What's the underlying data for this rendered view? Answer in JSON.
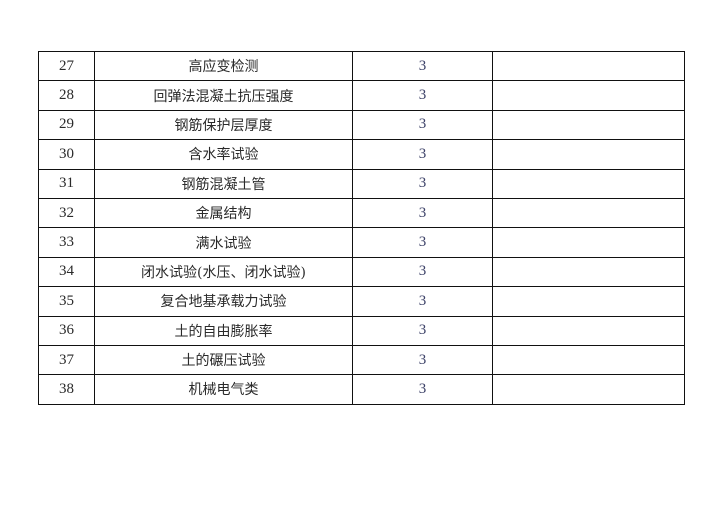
{
  "table": {
    "rows": [
      {
        "no": "27",
        "item": "高应变检测",
        "value": "3",
        "note": ""
      },
      {
        "no": "28",
        "item": "回弹法混凝土抗压强度",
        "value": "3",
        "note": ""
      },
      {
        "no": "29",
        "item": "钢筋保护层厚度",
        "value": "3",
        "note": ""
      },
      {
        "no": "30",
        "item": "含水率试验",
        "value": "3",
        "note": ""
      },
      {
        "no": "31",
        "item": "钢筋混凝土管",
        "value": "3",
        "note": ""
      },
      {
        "no": "32",
        "item": "金属结构",
        "value": "3",
        "note": ""
      },
      {
        "no": "33",
        "item": "满水试验",
        "value": "3",
        "note": ""
      },
      {
        "no": "34",
        "item": "闭水试验(水压、闭水试验)",
        "value": "3",
        "note": ""
      },
      {
        "no": "35",
        "item": "复合地基承载力试验",
        "value": "3",
        "note": ""
      },
      {
        "no": "36",
        "item": "土的自由膨胀率",
        "value": "3",
        "note": ""
      },
      {
        "no": "37",
        "item": "土的碾压试验",
        "value": "3",
        "note": ""
      },
      {
        "no": "38",
        "item": "机械电气类",
        "value": "3",
        "note": ""
      }
    ]
  }
}
